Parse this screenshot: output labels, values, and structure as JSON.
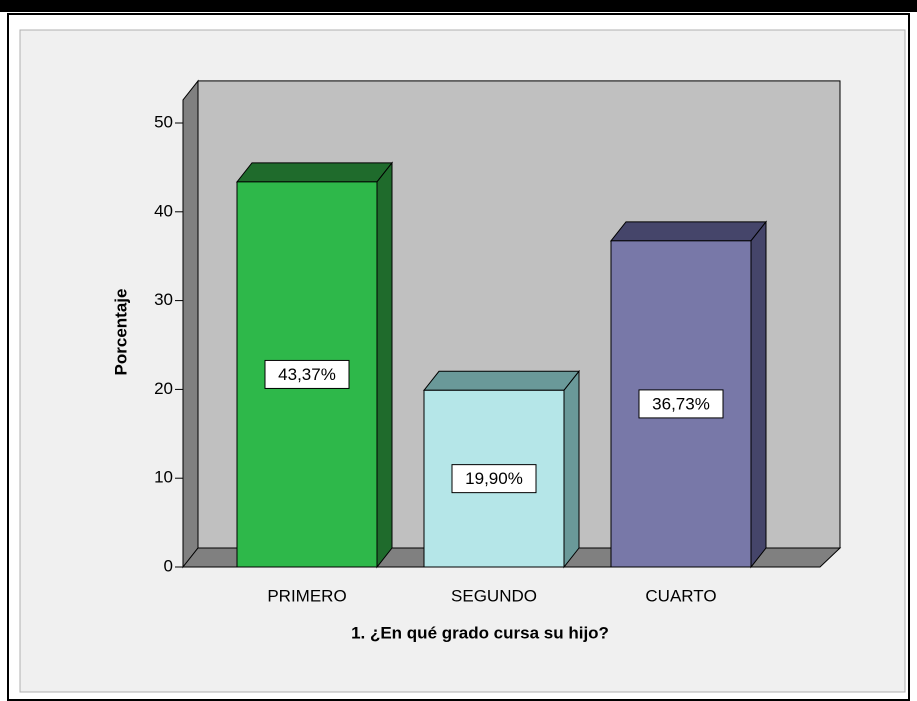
{
  "chart_data": {
    "type": "bar3d",
    "categories": [
      "PRIMERO",
      "SEGUNDO",
      "CUARTO"
    ],
    "values": [
      43.37,
      19.9,
      36.73
    ],
    "value_labels": [
      "43,37%",
      "19,90%",
      "36,73%"
    ],
    "colors": [
      "#2eb84a",
      "#b5e6e8",
      "#7878a8"
    ],
    "side_colors": [
      "#1f6b2c",
      "#6a9999",
      "#45456a"
    ],
    "x_label": "1. ¿En qué grado cursa su hijo?",
    "y_label": "Porcentaje",
    "ylim": [
      0,
      52.6
    ],
    "yticks": [
      0,
      10,
      20,
      30,
      40,
      50
    ]
  }
}
